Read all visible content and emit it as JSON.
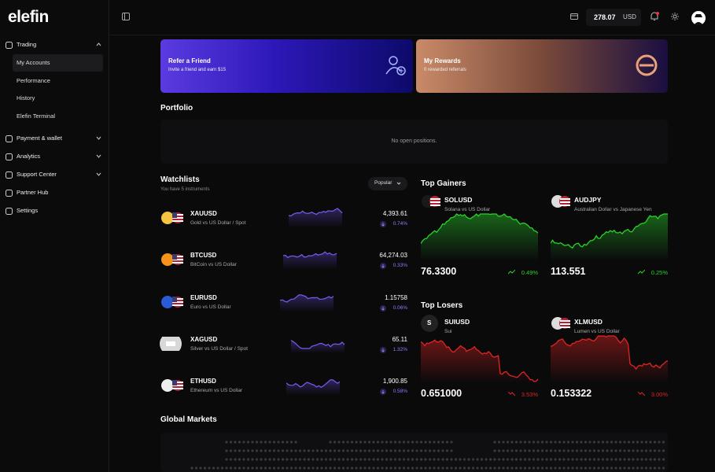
{
  "brand": "elefin",
  "header": {
    "balance": "278.07",
    "currency": "USD"
  },
  "sidebar": [
    {
      "label": "Trading",
      "children": [
        "My Accounts",
        "Performance",
        "History",
        "Elefin Terminal"
      ]
    },
    {
      "label": "Payment & wallet"
    },
    {
      "label": "Analytics"
    },
    {
      "label": "Support Center"
    },
    {
      "label": "Partner Hub"
    },
    {
      "label": "Settings"
    }
  ],
  "banners": [
    {
      "title": "Refer a Friend",
      "subtitle": "Invite a friend and earn $15"
    },
    {
      "title": "My Rewards",
      "subtitle": "0 rewarded referrals"
    }
  ],
  "portfolio": {
    "title": "Portfolio",
    "empty": "No open positions."
  },
  "watchlist": {
    "title": "Watchlists",
    "subtitle": "You have 5 instruments",
    "filter": "Popular",
    "rows": [
      {
        "symbol": "XAUUSD",
        "name": "Gold vs US Dollar / Spot",
        "price": "4,393.61",
        "change": "0.74%"
      },
      {
        "symbol": "BTCUSD",
        "name": "BitCoin vs US Dollar",
        "price": "64,274.03",
        "change": "0.33%"
      },
      {
        "symbol": "EURUSD",
        "name": "Euro vs US Dollar",
        "price": "1.15758",
        "change": "0.06%"
      },
      {
        "symbol": "XAGUSD",
        "name": "Silver vs US Dollar / Spot",
        "price": "65.11",
        "change": "1.32%"
      },
      {
        "symbol": "ETHUSD",
        "name": "Ethereum vs US Dollar",
        "price": "1,900.85",
        "change": "0.58%"
      }
    ]
  },
  "gainers": {
    "title": "Top Gainers",
    "cards": [
      {
        "symbol": "SOLUSD",
        "name": "Solana vs US Dollar",
        "price": "76.3300",
        "change": "0.49%"
      },
      {
        "symbol": "AUDJPY",
        "name": "Australian Dollar vs Japanese Yen",
        "price": "113.551",
        "change": "0.25%"
      }
    ]
  },
  "losers": {
    "title": "Top Losers",
    "cards": [
      {
        "icon": "S",
        "symbol": "SUIUSD",
        "name": "Sui",
        "price": "0.651000",
        "change": "3.53%"
      },
      {
        "symbol": "XLMUSD",
        "name": "Lumen vs US Dollar",
        "price": "0.153322",
        "change": "3.00%"
      }
    ]
  },
  "global": {
    "title": "Global Markets"
  }
}
